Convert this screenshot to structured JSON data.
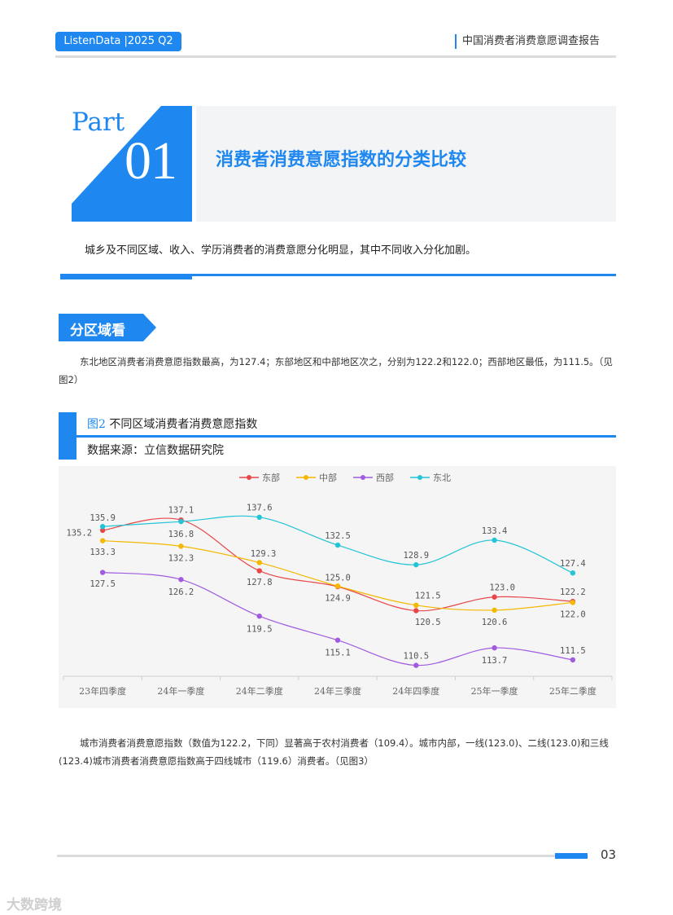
{
  "header": {
    "badge": "ListenData |2025 Q2",
    "title": "中国消费者消费意愿调查报告"
  },
  "part": {
    "word": "Part",
    "number": "01",
    "title": "消费者消费意愿指数的分类比较"
  },
  "intro": "城乡及不同区域、收入、学历消费者的消费意愿分化明显，其中不同收入分化加剧。",
  "section": {
    "tag": "分区域看",
    "para1_line1": "东北地区消费者消费意愿指数最高，为127.4；东部地区和中部地区次之，分别为122.2和122.0；西部地区最低，为111.5。（见",
    "para1_line2": "图2）"
  },
  "figure": {
    "num": "图2",
    "title": "不同区域消费者消费意愿指数",
    "source": "数据来源：立信数据研究院"
  },
  "colors": {
    "accent": "#1e88f0",
    "east": "#e8474a",
    "central": "#f5b800",
    "west": "#a05be0",
    "northeast": "#22c4d6"
  },
  "chart_data": {
    "type": "line",
    "categories": [
      "23年四季度",
      "24年一季度",
      "24年二季度",
      "24年三季度",
      "24年四季度",
      "25年一季度",
      "25年二季度"
    ],
    "series": [
      {
        "name": "东部",
        "color": "#e8474a",
        "values": [
          135.2,
          137.1,
          127.8,
          124.9,
          120.5,
          123.0,
          122.2
        ]
      },
      {
        "name": "中部",
        "color": "#f5b800",
        "values": [
          133.3,
          132.3,
          129.3,
          125.0,
          121.5,
          120.6,
          122.0
        ]
      },
      {
        "name": "西部",
        "color": "#a05be0",
        "values": [
          127.5,
          126.2,
          119.5,
          115.1,
          110.5,
          113.7,
          111.5
        ]
      },
      {
        "name": "东北",
        "color": "#22c4d6",
        "values": [
          135.9,
          136.8,
          137.6,
          132.5,
          128.9,
          133.4,
          127.4
        ]
      }
    ],
    "labels": [
      {
        "text": "135.9",
        "cat": 0,
        "v": 137.6
      },
      {
        "text": "135.2",
        "cat": -0.3,
        "v": 134.8
      },
      {
        "text": "133.3",
        "cat": 0,
        "v": 131.3
      },
      {
        "text": "127.5",
        "cat": 0,
        "v": 125.5
      },
      {
        "text": "137.1",
        "cat": 1,
        "v": 139.0
      },
      {
        "text": "136.8",
        "cat": 1,
        "v": 134.6
      },
      {
        "text": "132.3",
        "cat": 1,
        "v": 130.2
      },
      {
        "text": "126.2",
        "cat": 1,
        "v": 124.0
      },
      {
        "text": "137.6",
        "cat": 2,
        "v": 139.4
      },
      {
        "text": "129.3",
        "cat": 2.05,
        "v": 131.0
      },
      {
        "text": "127.8",
        "cat": 2,
        "v": 125.8
      },
      {
        "text": "119.5",
        "cat": 2,
        "v": 117.2
      },
      {
        "text": "132.5",
        "cat": 3,
        "v": 134.3
      },
      {
        "text": "125.0",
        "cat": 3,
        "v": 126.6
      },
      {
        "text": "124.9",
        "cat": 3,
        "v": 122.9
      },
      {
        "text": "115.1",
        "cat": 3,
        "v": 112.9
      },
      {
        "text": "128.9",
        "cat": 4,
        "v": 130.7
      },
      {
        "text": "121.5",
        "cat": 4.15,
        "v": 123.3
      },
      {
        "text": "120.5",
        "cat": 4.15,
        "v": 118.5
      },
      {
        "text": "110.5",
        "cat": 4,
        "v": 112.3
      },
      {
        "text": "133.4",
        "cat": 5,
        "v": 135.2
      },
      {
        "text": "123.0",
        "cat": 5.1,
        "v": 124.8
      },
      {
        "text": "120.6",
        "cat": 5,
        "v": 118.5
      },
      {
        "text": "113.7",
        "cat": 5,
        "v": 111.5
      },
      {
        "text": "127.4",
        "cat": 6,
        "v": 129.2
      },
      {
        "text": "122.2",
        "cat": 6,
        "v": 124.0
      },
      {
        "text": "122.0",
        "cat": 6,
        "v": 119.9
      },
      {
        "text": "111.5",
        "cat": 6,
        "v": 113.3
      }
    ],
    "ylim": [
      108.5,
      141
    ],
    "grid": false,
    "legend": "top-center"
  },
  "para2_line1": "城市消费者消费意愿指数（数值为122.2，下同）显著高于农村消费者（109.4）。城市内部，一线(123.0)、二线(123.0)和三线",
  "para2_line2": "(123.4)城市消费者消费意愿指数高于四线城市（119.6）消费者。（见图3）",
  "footer": {
    "page": "03",
    "watermark": "大数跨境"
  }
}
